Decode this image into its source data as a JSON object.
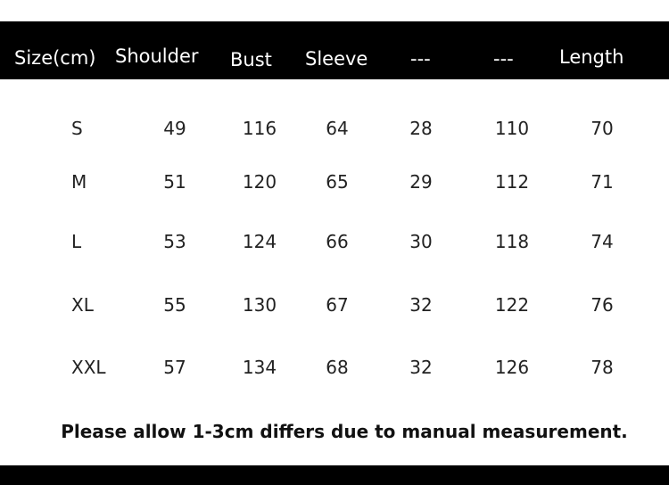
{
  "table": {
    "headers": [
      "Size(cm)",
      "Shoulder",
      "Bust",
      "Sleeve",
      "---",
      "---",
      "Length"
    ],
    "rows": [
      [
        "S",
        "49",
        "116",
        "64",
        "28",
        "110",
        "70"
      ],
      [
        "M",
        "51",
        "120",
        "65",
        "29",
        "112",
        "71"
      ],
      [
        "L",
        "53",
        "124",
        "66",
        "30",
        "118",
        "74"
      ],
      [
        "XL",
        "55",
        "130",
        "67",
        "32",
        "122",
        "76"
      ],
      [
        "XXL",
        "57",
        "134",
        "68",
        "32",
        "126",
        "78"
      ]
    ]
  },
  "note": "Please allow 1-3cm differs due to manual measurement.",
  "colors": {
    "header_bg": "#000000",
    "header_text": "#ffffff"
  }
}
